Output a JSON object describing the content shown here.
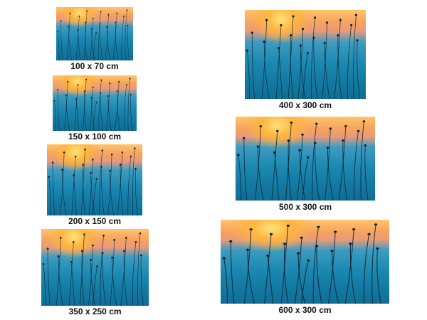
{
  "items": [
    {
      "name": "size-100x70",
      "label": "100 x 70 cm"
    },
    {
      "name": "size-150x100",
      "label": "150 x 100 cm"
    },
    {
      "name": "size-200x150",
      "label": "200 x 150 cm"
    },
    {
      "name": "size-350x250",
      "label": "350 x 250 cm"
    },
    {
      "name": "size-400x300",
      "label": "400 x 300 cm"
    },
    {
      "name": "size-500x300",
      "label": "500 x 300 cm"
    },
    {
      "name": "size-600x300",
      "label": "600 x 300 cm"
    }
  ],
  "colors": {
    "sky": "#ffc46b",
    "sun": "#ffe27a",
    "water": "#1d8ab3",
    "stems": "#0b1f2e"
  }
}
